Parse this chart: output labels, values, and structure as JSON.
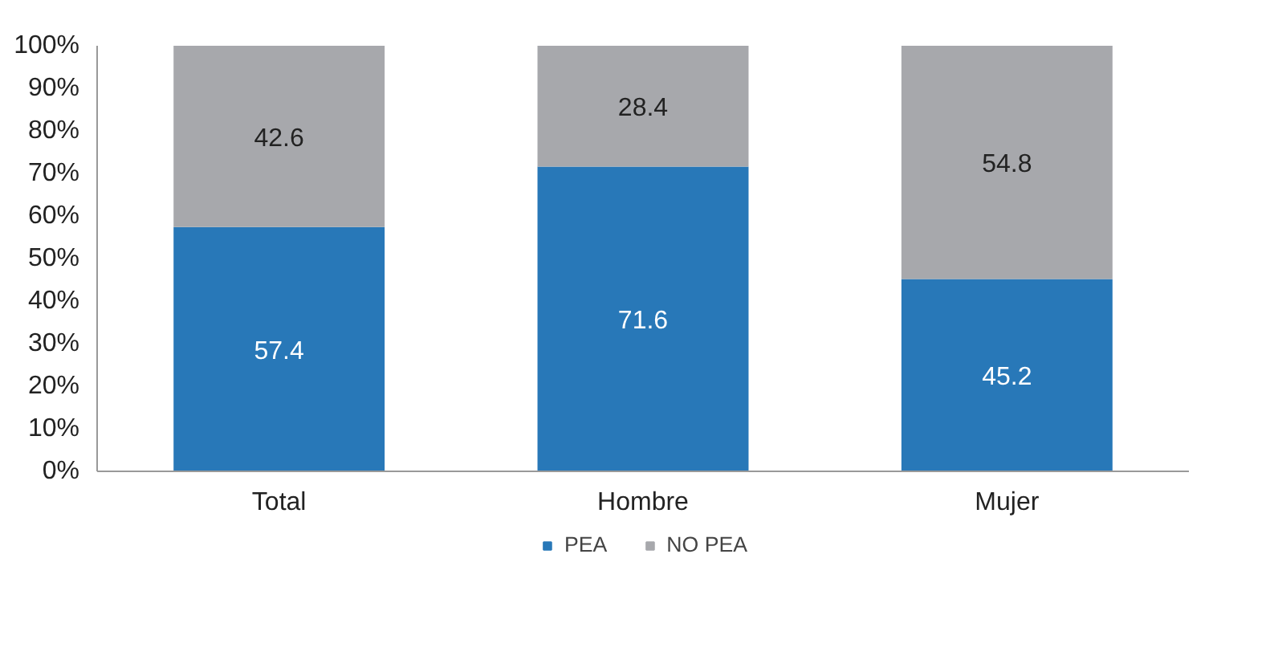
{
  "chart_data": {
    "type": "bar",
    "stacked": true,
    "categories": [
      "Total",
      "Hombre",
      "Mujer"
    ],
    "series": [
      {
        "name": "PEA",
        "color": "#2878b8",
        "values": [
          57.4,
          71.6,
          45.2
        ]
      },
      {
        "name": "NO PEA",
        "color": "#a7a8ac",
        "values": [
          42.6,
          28.4,
          54.8
        ]
      }
    ],
    "ylim": [
      0,
      100
    ],
    "yticks": [
      {
        "value": 0,
        "label": "0%"
      },
      {
        "value": 10,
        "label": "10%"
      },
      {
        "value": 20,
        "label": "20%"
      },
      {
        "value": 30,
        "label": "30%"
      },
      {
        "value": 40,
        "label": "40%"
      },
      {
        "value": 50,
        "label": "50%"
      },
      {
        "value": 60,
        "label": "60%"
      },
      {
        "value": 70,
        "label": "70%"
      },
      {
        "value": 80,
        "label": "80%"
      },
      {
        "value": 90,
        "label": "90%"
      },
      {
        "value": 100,
        "label": "100%"
      }
    ],
    "data_labels": true,
    "grid": false,
    "legend": "bottom"
  }
}
